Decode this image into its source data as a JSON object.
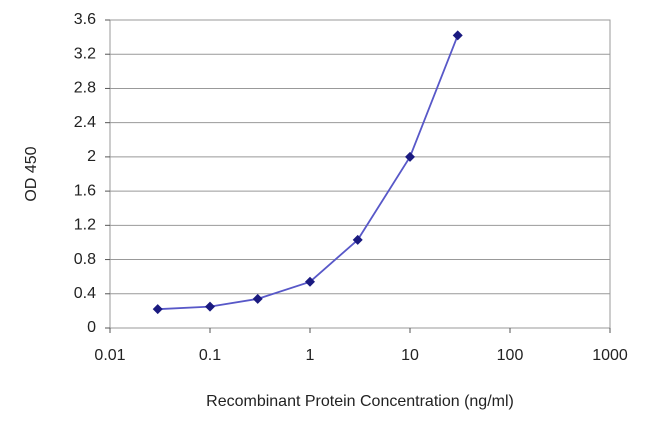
{
  "chart_data": {
    "type": "line",
    "xlabel": "Recombinant Protein Concentration (ng/ml)",
    "ylabel": "OD 450",
    "x": [
      0.03,
      0.1,
      0.3,
      1,
      3,
      10,
      30
    ],
    "values": [
      0.22,
      0.25,
      0.34,
      0.54,
      1.03,
      2.0,
      3.42
    ],
    "color": "#5858c8",
    "marker_color": "#1a1a80",
    "xscale": "log",
    "xlim": [
      0.01,
      1000
    ],
    "xticks": [
      0.01,
      0.1,
      1,
      10,
      100,
      1000
    ],
    "ylim": [
      0,
      3.6
    ],
    "yticks": [
      0,
      0.4,
      0.8,
      1.2,
      1.6,
      2,
      2.4,
      2.8,
      3.2,
      3.6
    ],
    "grid": true
  }
}
